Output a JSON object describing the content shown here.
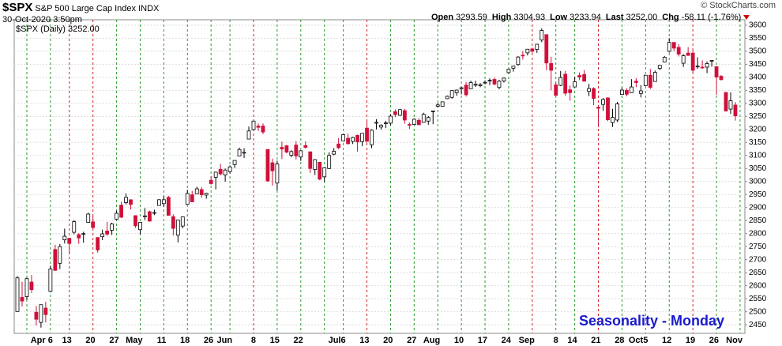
{
  "chart_data": {
    "type": "candlestick",
    "symbol": "$SPX",
    "name": "S&P 500 Large Cap Index",
    "exchange": "INDX",
    "timestamp": "30-Oct-2020 3:50pm",
    "quote": [
      {
        "label": "Open",
        "value": "3293.59"
      },
      {
        "label": "High",
        "value": "3304.93"
      },
      {
        "label": "Low",
        "value": "3233.94"
      },
      {
        "label": "Last",
        "value": "3252.00"
      },
      {
        "label": "Chg",
        "value": "-58.11 (-1.76%)"
      }
    ],
    "credit": "© StockCharts.com",
    "legend": "$SPX (Daily) 3252.00",
    "annotation": "Seasonality - Monday",
    "up_color": "#ffffff",
    "down_color": "#d0103a",
    "grid": true,
    "ylim": [
      2417,
      3621
    ],
    "yticks": [
      2450,
      2500,
      2550,
      2600,
      2650,
      2700,
      2750,
      2800,
      2850,
      2900,
      2950,
      3000,
      3050,
      3100,
      3150,
      3200,
      3250,
      3300,
      3350,
      3400,
      3450,
      3500,
      3550,
      3600
    ],
    "categories": [
      null,
      null,
      null,
      null,
      null,
      null,
      null,
      "Apr 6",
      null,
      null,
      null,
      "13",
      null,
      null,
      null,
      null,
      "20",
      null,
      null,
      null,
      null,
      "27",
      null,
      null,
      null,
      null,
      "May",
      null,
      null,
      null,
      null,
      "11",
      null,
      null,
      null,
      null,
      "18",
      null,
      null,
      null,
      null,
      "26",
      null,
      null,
      null,
      "Jun",
      null,
      null,
      null,
      null,
      "8",
      null,
      null,
      null,
      null,
      "15",
      null,
      null,
      null,
      null,
      "22",
      null,
      null,
      null,
      null,
      null,
      null,
      null,
      null,
      "Jul6",
      null,
      null,
      null,
      null,
      "13",
      null,
      null,
      null,
      null,
      "20",
      null,
      null,
      null,
      null,
      "27",
      null,
      null,
      null,
      null,
      "Aug",
      null,
      null,
      null,
      null,
      "10",
      null,
      null,
      null,
      null,
      "17",
      null,
      null,
      null,
      null,
      "24",
      null,
      null,
      null,
      null,
      "Sep",
      null,
      null,
      null,
      null,
      "8",
      null,
      null,
      null,
      "14",
      null,
      null,
      null,
      null,
      "21",
      null,
      null,
      null,
      null,
      "28",
      null,
      null,
      null,
      null,
      "Oct5",
      null,
      null,
      null,
      null,
      "12",
      null,
      null,
      null,
      null,
      "19",
      null,
      null,
      null,
      null,
      "26",
      null,
      null,
      null,
      null,
      "Nov"
    ],
    "week_lines": [
      null,
      null,
      "#2a9a2a",
      null,
      null,
      null,
      null,
      "#2a9a2a",
      null,
      null,
      null,
      "#d02020",
      null,
      null,
      null,
      null,
      "#d02020",
      null,
      null,
      null,
      null,
      "#2a9a2a",
      null,
      null,
      null,
      null,
      "#2a9a2a",
      null,
      null,
      null,
      null,
      "#2a9a2a",
      null,
      null,
      null,
      null,
      "#2a9a2a",
      null,
      null,
      null,
      null,
      "#2a9a2a",
      null,
      null,
      null,
      "#2a9a2a",
      null,
      null,
      null,
      null,
      "#d02020",
      null,
      null,
      null,
      null,
      "#2a9a2a",
      null,
      null,
      null,
      null,
      "#2a9a2a",
      null,
      null,
      null,
      null,
      "#2a9a2a",
      null,
      null,
      null,
      "#2a9a2a",
      null,
      null,
      null,
      null,
      "#d02020",
      null,
      null,
      null,
      null,
      "#2a9a2a",
      null,
      null,
      null,
      null,
      "#2a9a2a",
      null,
      null,
      null,
      null,
      "#2a9a2a",
      null,
      null,
      null,
      null,
      "#2a9a2a",
      null,
      null,
      null,
      null,
      "#2a9a2a",
      null,
      null,
      null,
      null,
      "#2a9a2a",
      null,
      null,
      null,
      null,
      "#d02020",
      null,
      null,
      null,
      null,
      "#2a9a2a",
      null,
      null,
      null,
      "#2a9a2a",
      null,
      null,
      null,
      null,
      "#d02020",
      null,
      null,
      null,
      null,
      "#2a9a2a",
      null,
      null,
      null,
      null,
      "#2a9a2a",
      null,
      null,
      null,
      null,
      "#2a9a2a",
      null,
      null,
      null,
      null,
      "#d02020",
      null,
      null,
      null,
      null,
      "#2a9a2a",
      null,
      null,
      null,
      null,
      "#2a9a2a"
    ],
    "ohlc": [
      [
        2501,
        2637,
        2500,
        2630
      ],
      [
        2555,
        2615,
        2520,
        2541
      ],
      [
        2558,
        2631,
        2545,
        2627
      ],
      [
        2614,
        2641,
        2572,
        2585
      ],
      [
        2498,
        2522,
        2447,
        2471
      ],
      [
        2459,
        2528,
        2439,
        2527
      ],
      [
        2514,
        2538,
        2459,
        2489
      ],
      [
        2578,
        2677,
        2575,
        2664
      ],
      [
        2739,
        2757,
        2657,
        2659
      ],
      [
        2686,
        2760,
        2664,
        2750
      ],
      [
        2776,
        2819,
        2762,
        2790
      ],
      [
        2782,
        2783,
        2722,
        2762
      ],
      [
        2805,
        2852,
        2797,
        2846
      ],
      [
        2796,
        2802,
        2761,
        2783
      ],
      [
        2799,
        2807,
        2765,
        2800
      ],
      [
        2843,
        2880,
        2843,
        2875
      ],
      [
        2845,
        2868,
        2820,
        2823
      ],
      [
        2785,
        2786,
        2727,
        2737
      ],
      [
        2788,
        2815,
        2775,
        2799
      ],
      [
        2810,
        2845,
        2791,
        2798
      ],
      [
        2813,
        2842,
        2795,
        2837
      ],
      [
        2855,
        2888,
        2852,
        2878
      ],
      [
        2909,
        2922,
        2860,
        2863
      ],
      [
        2919,
        2954,
        2912,
        2939
      ],
      [
        2930,
        2930,
        2892,
        2912
      ],
      [
        2869,
        2870,
        2822,
        2830
      ],
      [
        2815,
        2844,
        2797,
        2843
      ],
      [
        2868,
        2898,
        2852,
        2868
      ],
      [
        2884,
        2888,
        2846,
        2848
      ],
      [
        2879,
        2892,
        2871,
        2881
      ],
      [
        2908,
        2932,
        2907,
        2930
      ],
      [
        2915,
        2944,
        2903,
        2930
      ],
      [
        2939,
        2945,
        2869,
        2870
      ],
      [
        2865,
        2874,
        2793,
        2820
      ],
      [
        2794,
        2852,
        2766,
        2852
      ],
      [
        2829,
        2865,
        2820,
        2864
      ],
      [
        2913,
        2968,
        2913,
        2954
      ],
      [
        2949,
        2964,
        2922,
        2922
      ],
      [
        2953,
        2980,
        2953,
        2972
      ],
      [
        2969,
        2978,
        2938,
        2949
      ],
      [
        2948,
        2957,
        2934,
        2955
      ],
      [
        3005,
        3021,
        2988,
        2992
      ],
      [
        3016,
        3036,
        2970,
        3036
      ],
      [
        3047,
        3068,
        3024,
        3029
      ],
      [
        3025,
        3050,
        2999,
        3044
      ],
      [
        3038,
        3062,
        3031,
        3056
      ],
      [
        3065,
        3081,
        3052,
        3081
      ],
      [
        3098,
        3130,
        3098,
        3123
      ],
      [
        3111,
        3128,
        3090,
        3112
      ],
      [
        3163,
        3211,
        3163,
        3194
      ],
      [
        3199,
        3233,
        3196,
        3232
      ],
      [
        3213,
        3223,
        3194,
        3208
      ],
      [
        3213,
        3223,
        3182,
        3190
      ],
      [
        3123,
        3124,
        2999,
        3002
      ],
      [
        3072,
        3088,
        2984,
        3041
      ],
      [
        2994,
        3080,
        2965,
        3067
      ],
      [
        3131,
        3153,
        3086,
        3125
      ],
      [
        3137,
        3141,
        3108,
        3113
      ],
      [
        3101,
        3120,
        3093,
        3115
      ],
      [
        3140,
        3155,
        3084,
        3098
      ],
      [
        3094,
        3120,
        3079,
        3118
      ],
      [
        3138,
        3154,
        3127,
        3131
      ],
      [
        3114,
        3115,
        3033,
        3050
      ],
      [
        3046,
        3086,
        3025,
        3084
      ],
      [
        3074,
        3074,
        3005,
        3009
      ],
      [
        3018,
        3054,
        2999,
        3053
      ],
      [
        3050,
        3112,
        3048,
        3100
      ],
      [
        3105,
        3128,
        3101,
        3116
      ],
      [
        3144,
        3166,
        3124,
        3130
      ],
      [
        3156,
        3183,
        3156,
        3180
      ],
      [
        3166,
        3184,
        3142,
        3145
      ],
      [
        3154,
        3172,
        3144,
        3169
      ],
      [
        3177,
        3180,
        3115,
        3152
      ],
      [
        3153,
        3186,
        3136,
        3185
      ],
      [
        3205,
        3236,
        3149,
        3155
      ],
      [
        3141,
        3200,
        3128,
        3197
      ],
      [
        3226,
        3239,
        3200,
        3227
      ],
      [
        3209,
        3220,
        3199,
        3216
      ],
      [
        3224,
        3233,
        3205,
        3225
      ],
      [
        3224,
        3259,
        3216,
        3251
      ],
      [
        3268,
        3277,
        3247,
        3257
      ],
      [
        3254,
        3279,
        3252,
        3276
      ],
      [
        3272,
        3279,
        3222,
        3236
      ],
      [
        3219,
        3227,
        3201,
        3216
      ],
      [
        3219,
        3242,
        3219,
        3239
      ],
      [
        3235,
        3243,
        3216,
        3218
      ],
      [
        3227,
        3264,
        3227,
        3258
      ],
      [
        3232,
        3251,
        3218,
        3246
      ],
      [
        3270,
        3272,
        3220,
        3271
      ],
      [
        3289,
        3302,
        3284,
        3294
      ],
      [
        3289,
        3306,
        3287,
        3306
      ],
      [
        3318,
        3330,
        3317,
        3327
      ],
      [
        3323,
        3351,
        3318,
        3349
      ],
      [
        3341,
        3353,
        3329,
        3351
      ],
      [
        3356,
        3364,
        3335,
        3360
      ],
      [
        3370,
        3382,
        3326,
        3333
      ],
      [
        3356,
        3387,
        3356,
        3380
      ],
      [
        3372,
        3387,
        3363,
        3373
      ],
      [
        3368,
        3378,
        3362,
        3372
      ],
      [
        3380,
        3388,
        3373,
        3381
      ],
      [
        3388,
        3396,
        3370,
        3389
      ],
      [
        3392,
        3399,
        3369,
        3374
      ],
      [
        3361,
        3390,
        3354,
        3385
      ],
      [
        3386,
        3399,
        3380,
        3397
      ],
      [
        3418,
        3432,
        3414,
        3431
      ],
      [
        3435,
        3444,
        3422,
        3443
      ],
      [
        3449,
        3481,
        3444,
        3478
      ],
      [
        3485,
        3501,
        3468,
        3484
      ],
      [
        3494,
        3509,
        3484,
        3508
      ],
      [
        3509,
        3514,
        3494,
        3500
      ],
      [
        3507,
        3528,
        3494,
        3527
      ],
      [
        3543,
        3588,
        3535,
        3580
      ],
      [
        3564,
        3564,
        3427,
        3455
      ],
      [
        3453,
        3479,
        3350,
        3427
      ],
      [
        3371,
        3379,
        3329,
        3331
      ],
      [
        3369,
        3424,
        3366,
        3399
      ],
      [
        3412,
        3425,
        3329,
        3339
      ],
      [
        3352,
        3368,
        3310,
        3341
      ],
      [
        3363,
        3402,
        3363,
        3383
      ],
      [
        3407,
        3419,
        3389,
        3401
      ],
      [
        3411,
        3428,
        3384,
        3385
      ],
      [
        3346,
        3375,
        3328,
        3357
      ],
      [
        3357,
        3362,
        3293,
        3319
      ],
      [
        3285,
        3286,
        3209,
        3281
      ],
      [
        3296,
        3321,
        3271,
        3315
      ],
      [
        3321,
        3323,
        3232,
        3237
      ],
      [
        3226,
        3279,
        3210,
        3246
      ],
      [
        3236,
        3306,
        3228,
        3298
      ],
      [
        3334,
        3361,
        3334,
        3351
      ],
      [
        3350,
        3358,
        3327,
        3335
      ],
      [
        3341,
        3393,
        3340,
        3363
      ],
      [
        3385,
        3397,
        3362,
        3380
      ],
      [
        3338,
        3370,
        3323,
        3348
      ],
      [
        3368,
        3409,
        3368,
        3408
      ],
      [
        3408,
        3432,
        3355,
        3361
      ],
      [
        3384,
        3426,
        3384,
        3419
      ],
      [
        3434,
        3447,
        3428,
        3446
      ],
      [
        3459,
        3482,
        3458,
        3477
      ],
      [
        3500,
        3550,
        3495,
        3534
      ],
      [
        3534,
        3535,
        3500,
        3512
      ],
      [
        3515,
        3527,
        3480,
        3489
      ],
      [
        3454,
        3489,
        3440,
        3483
      ],
      [
        3493,
        3516,
        3483,
        3484
      ],
      [
        3493,
        3503,
        3419,
        3427
      ],
      [
        3440,
        3477,
        3433,
        3443
      ],
      [
        3439,
        3465,
        3433,
        3436
      ],
      [
        3439,
        3461,
        3416,
        3453
      ],
      [
        3464,
        3466,
        3441,
        3465
      ],
      [
        3441,
        3441,
        3333,
        3401
      ],
      [
        3404,
        3409,
        3388,
        3391
      ],
      [
        3342,
        3342,
        3268,
        3271
      ],
      [
        3278,
        3342,
        3260,
        3310
      ],
      [
        3293.59,
        3304.93,
        3233.94,
        3252
      ],
      null
    ]
  }
}
